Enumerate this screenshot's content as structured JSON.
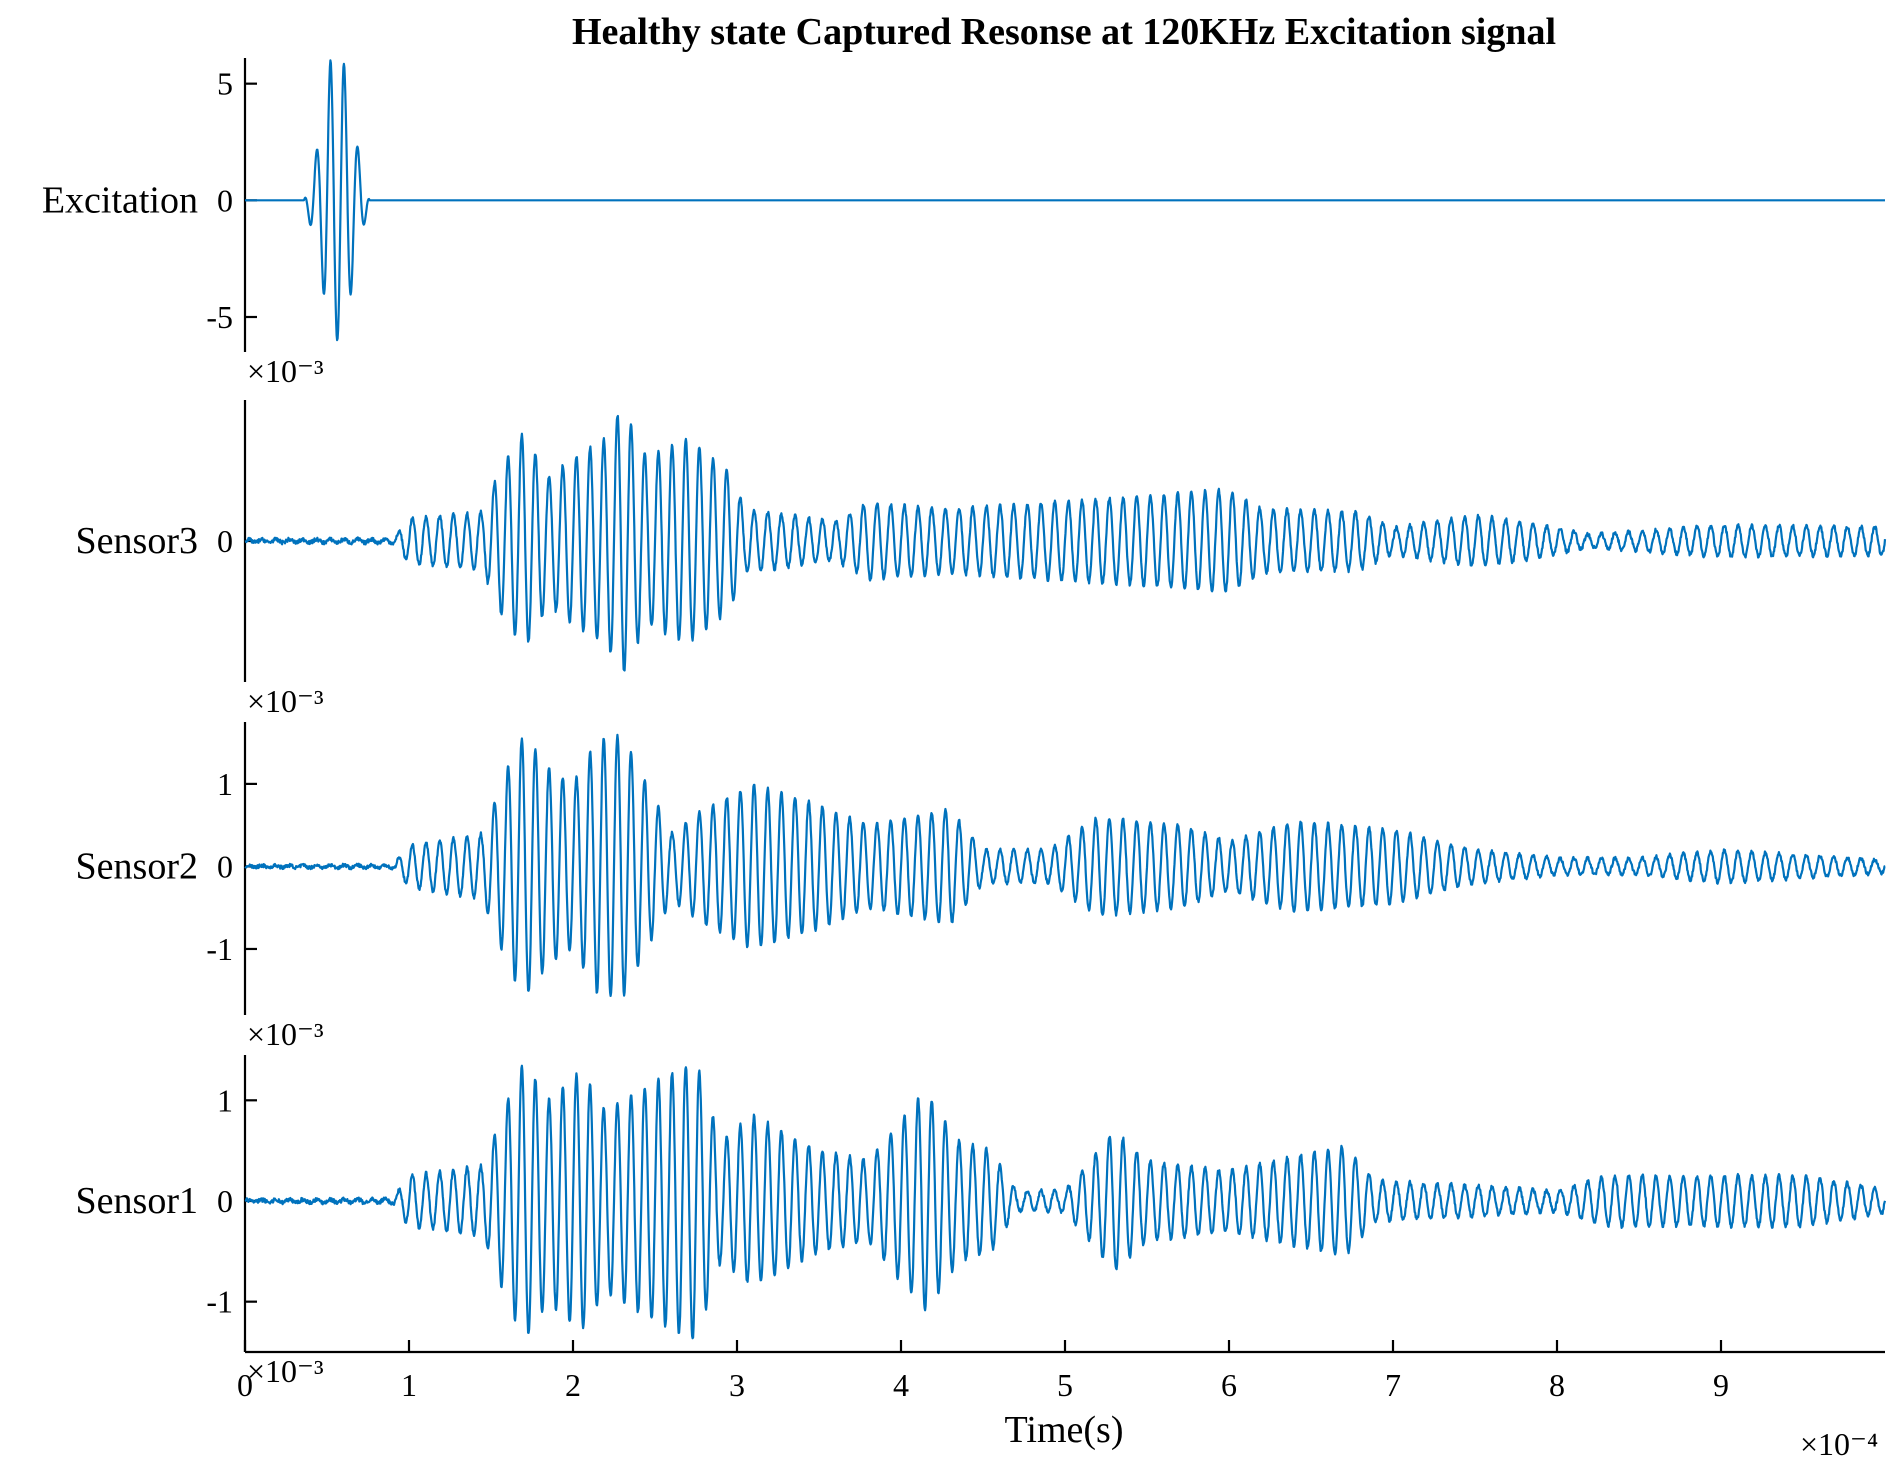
{
  "chart_data": {
    "type": "line",
    "title": "Healthy state Captured Resonse at 120KHz Excitation signal",
    "xlabel": "Time(s)",
    "x_exponent_label": "×10⁻⁴",
    "xlim": [
      0,
      10
    ],
    "x_ticks": [
      0,
      1,
      2,
      3,
      4,
      5,
      6,
      7,
      8,
      9
    ],
    "x_tick_labels": [
      "0",
      "1",
      "2",
      "3",
      "4",
      "5",
      "6",
      "7",
      "8",
      "9"
    ],
    "line_color": "#0072BD",
    "series": [
      {
        "name": "Excitation",
        "ylabel": "Excitation",
        "ylim": [
          -6.5,
          6.1
        ],
        "y_ticks": [
          -5,
          0,
          5
        ],
        "y_tick_labels": [
          "-5",
          "0",
          "5"
        ],
        "y_exponent_label": "×10⁻³",
        "carrier_per_unit": 12,
        "noise": 0,
        "envelope": [
          [
            0,
            0
          ],
          [
            0.36,
            0
          ],
          [
            0.45,
            2.5
          ],
          [
            0.52,
            6.0
          ],
          [
            0.6,
            6.0
          ],
          [
            0.68,
            2.5
          ],
          [
            0.76,
            0
          ],
          [
            10,
            0
          ]
        ]
      },
      {
        "name": "Sensor3",
        "ylabel": "Sensor3",
        "ylim": [
          -2.2,
          2.2
        ],
        "y_ticks": [
          0
        ],
        "y_tick_labels": [
          "0"
        ],
        "y_exponent_label": "×10⁻³",
        "carrier_per_unit": 12,
        "noise": 0.03,
        "envelope": [
          [
            0,
            0.02
          ],
          [
            0.9,
            0.03
          ],
          [
            1.0,
            0.35
          ],
          [
            1.45,
            0.45
          ],
          [
            1.55,
            1.1
          ],
          [
            1.7,
            1.7
          ],
          [
            1.85,
            1.0
          ],
          [
            2.0,
            1.3
          ],
          [
            2.2,
            1.6
          ],
          [
            2.3,
            2.1
          ],
          [
            2.45,
            1.3
          ],
          [
            2.7,
            1.6
          ],
          [
            2.95,
            1.1
          ],
          [
            3.05,
            0.5
          ],
          [
            3.6,
            0.3
          ],
          [
            3.8,
            0.6
          ],
          [
            4.3,
            0.5
          ],
          [
            5.5,
            0.7
          ],
          [
            6.0,
            0.8
          ],
          [
            6.2,
            0.5
          ],
          [
            6.8,
            0.45
          ],
          [
            7.0,
            0.2
          ],
          [
            7.5,
            0.4
          ],
          [
            7.8,
            0.3
          ],
          [
            8.2,
            0.1
          ],
          [
            9.0,
            0.25
          ],
          [
            10,
            0.22
          ]
        ]
      },
      {
        "name": "Sensor2",
        "ylabel": "Sensor2",
        "ylim": [
          -1.8,
          1.75
        ],
        "y_ticks": [
          -1,
          0,
          1
        ],
        "y_tick_labels": [
          "-1",
          "0",
          "1"
        ],
        "y_exponent_label": "×10⁻³",
        "carrier_per_unit": 12,
        "noise": 0.02,
        "envelope": [
          [
            0,
            0.01
          ],
          [
            0.9,
            0.02
          ],
          [
            1.0,
            0.25
          ],
          [
            1.45,
            0.4
          ],
          [
            1.6,
            1.2
          ],
          [
            1.7,
            1.6
          ],
          [
            1.85,
            1.2
          ],
          [
            2.0,
            1.0
          ],
          [
            2.15,
            1.55
          ],
          [
            2.3,
            1.6
          ],
          [
            2.5,
            0.8
          ],
          [
            2.6,
            0.4
          ],
          [
            2.8,
            0.7
          ],
          [
            3.1,
            1.0
          ],
          [
            3.5,
            0.75
          ],
          [
            3.8,
            0.5
          ],
          [
            4.3,
            0.7
          ],
          [
            4.5,
            0.2
          ],
          [
            4.9,
            0.2
          ],
          [
            5.2,
            0.6
          ],
          [
            5.7,
            0.5
          ],
          [
            6.0,
            0.3
          ],
          [
            6.4,
            0.55
          ],
          [
            7.0,
            0.45
          ],
          [
            7.5,
            0.2
          ],
          [
            8.0,
            0.1
          ],
          [
            8.5,
            0.1
          ],
          [
            9.0,
            0.2
          ],
          [
            10,
            0.08
          ]
        ]
      },
      {
        "name": "Sensor1",
        "ylabel": "Sensor1",
        "ylim": [
          -1.5,
          1.45
        ],
        "y_ticks": [
          -1,
          0,
          1
        ],
        "y_tick_labels": [
          "-1",
          "0",
          "1"
        ],
        "y_exponent_label": "×10⁻³",
        "carrier_per_unit": 12,
        "noise": 0.02,
        "envelope": [
          [
            0,
            0.01
          ],
          [
            0.9,
            0.02
          ],
          [
            1.0,
            0.25
          ],
          [
            1.45,
            0.35
          ],
          [
            1.6,
            1.0
          ],
          [
            1.7,
            1.4
          ],
          [
            1.85,
            1.0
          ],
          [
            2.05,
            1.3
          ],
          [
            2.2,
            0.9
          ],
          [
            2.4,
            1.1
          ],
          [
            2.75,
            1.4
          ],
          [
            2.9,
            0.6
          ],
          [
            3.1,
            0.85
          ],
          [
            3.5,
            0.5
          ],
          [
            3.8,
            0.4
          ],
          [
            4.15,
            1.1
          ],
          [
            4.35,
            0.6
          ],
          [
            4.55,
            0.5
          ],
          [
            4.7,
            0.1
          ],
          [
            5.0,
            0.1
          ],
          [
            5.3,
            0.7
          ],
          [
            5.5,
            0.4
          ],
          [
            6.0,
            0.3
          ],
          [
            6.7,
            0.55
          ],
          [
            6.9,
            0.2
          ],
          [
            7.5,
            0.15
          ],
          [
            8.0,
            0.1
          ],
          [
            8.3,
            0.25
          ],
          [
            9.5,
            0.25
          ],
          [
            10,
            0.12
          ]
        ]
      }
    ]
  }
}
